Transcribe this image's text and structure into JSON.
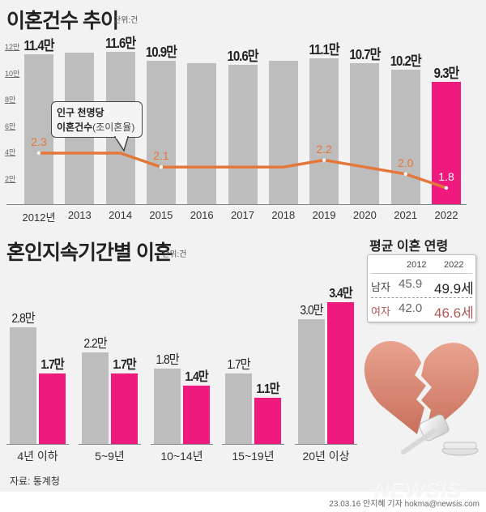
{
  "top_chart": {
    "title": "이혼건수 추이",
    "unit": "단위:건",
    "yticks": [
      "12만",
      "10만",
      "8만",
      "6만",
      "4만",
      "2만"
    ],
    "callout": {
      "line1": "인구 천명당",
      "line2_bold": "이혼건수",
      "line2_sub": "(조이혼율)"
    },
    "years": [
      "2012년",
      "2013",
      "2014",
      "2015",
      "2016",
      "2017",
      "2018",
      "2019",
      "2020",
      "2021",
      "2022"
    ],
    "bar_labels": [
      "11.4만",
      "",
      "11.6만",
      "10.9만",
      "",
      "10.6만",
      "",
      "11.1만",
      "10.7만",
      "10.2만",
      "9.3만"
    ],
    "rate_labels": [
      "2.3",
      "",
      "",
      "2.1",
      "",
      "",
      "",
      "2.2",
      "",
      "2.0",
      "1.8"
    ]
  },
  "bottom_chart": {
    "title": "혼인지속기간별 이혼",
    "unit": "단위:건",
    "groups": [
      {
        "label": "4년 이하",
        "v2012": "2.8만",
        "v2022": "1.7만"
      },
      {
        "label": "5~9년",
        "v2012": "2.2만",
        "v2022": "1.7만"
      },
      {
        "label": "10~14년",
        "v2012": "1.8만",
        "v2022": "1.4만"
      },
      {
        "label": "15~19년",
        "v2012": "1.7만",
        "v2022": "1.1만"
      },
      {
        "label": "20년 이상",
        "v2012": "3.0만",
        "v2022": "3.4만"
      }
    ]
  },
  "avg_age": {
    "title": "평균 이혼 연령",
    "col1": "2012",
    "col2": "2022",
    "male": {
      "label": "남자",
      "v2012": "45.9",
      "v2022": "49.9세"
    },
    "female": {
      "label": "여자",
      "v2012": "42.0",
      "v2022": "46.6세"
    }
  },
  "footer": {
    "source": "자료: 통계청",
    "watermark": "NEWSIS",
    "credit": "23.03.16 안지혜 기자 hokma@newsis.com"
  },
  "colors": {
    "gray_bar": "#bdbdbd",
    "pink_bar": "#ee1a7d",
    "rate_line": "#e4773a",
    "female_text": "#b0585a"
  },
  "chart_data": [
    {
      "type": "bar",
      "title": "이혼건수 추이",
      "subtitle": "단위:건",
      "categories": [
        "2012",
        "2013",
        "2014",
        "2015",
        "2016",
        "2017",
        "2018",
        "2019",
        "2020",
        "2021",
        "2022"
      ],
      "series": [
        {
          "name": "이혼건수 (만건)",
          "values": [
            11.4,
            11.5,
            11.6,
            10.9,
            10.7,
            10.6,
            10.9,
            11.1,
            10.7,
            10.2,
            9.3
          ]
        },
        {
          "name": "인구 천명당 이혼건수(조이혼율)",
          "type": "line",
          "values": [
            2.3,
            2.3,
            2.3,
            2.1,
            2.1,
            2.1,
            2.1,
            2.2,
            2.1,
            2.0,
            1.8
          ]
        }
      ],
      "labeled_values": {
        "2012": 11.4,
        "2014": 11.6,
        "2015": 10.9,
        "2017": 10.6,
        "2019": 11.1,
        "2020": 10.7,
        "2021": 10.2,
        "2022": 9.3
      },
      "labeled_rates": {
        "2012": 2.3,
        "2015": 2.1,
        "2019": 2.2,
        "2021": 2.0,
        "2022": 1.8
      },
      "yticks": [
        "2만",
        "4만",
        "6만",
        "8만",
        "10만",
        "12만"
      ],
      "ylim": [
        0,
        12
      ],
      "ylabel": "만건",
      "grid": false,
      "highlight": "2022"
    },
    {
      "type": "bar",
      "title": "혼인지속기간별 이혼",
      "subtitle": "단위:건",
      "categories": [
        "4년 이하",
        "5~9년",
        "10~14년",
        "15~19년",
        "20년 이상"
      ],
      "series": [
        {
          "name": "2012",
          "values": [
            2.8,
            2.2,
            1.8,
            1.7,
            3.0
          ]
        },
        {
          "name": "2022",
          "values": [
            1.7,
            1.7,
            1.4,
            1.1,
            3.4
          ]
        }
      ],
      "ylabel": "만건",
      "grid": false
    },
    {
      "type": "table",
      "title": "평균 이혼 연령",
      "columns": [
        "",
        "2012",
        "2022"
      ],
      "rows": [
        [
          "남자",
          45.9,
          49.9
        ],
        [
          "여자",
          42.0,
          46.6
        ]
      ]
    }
  ]
}
